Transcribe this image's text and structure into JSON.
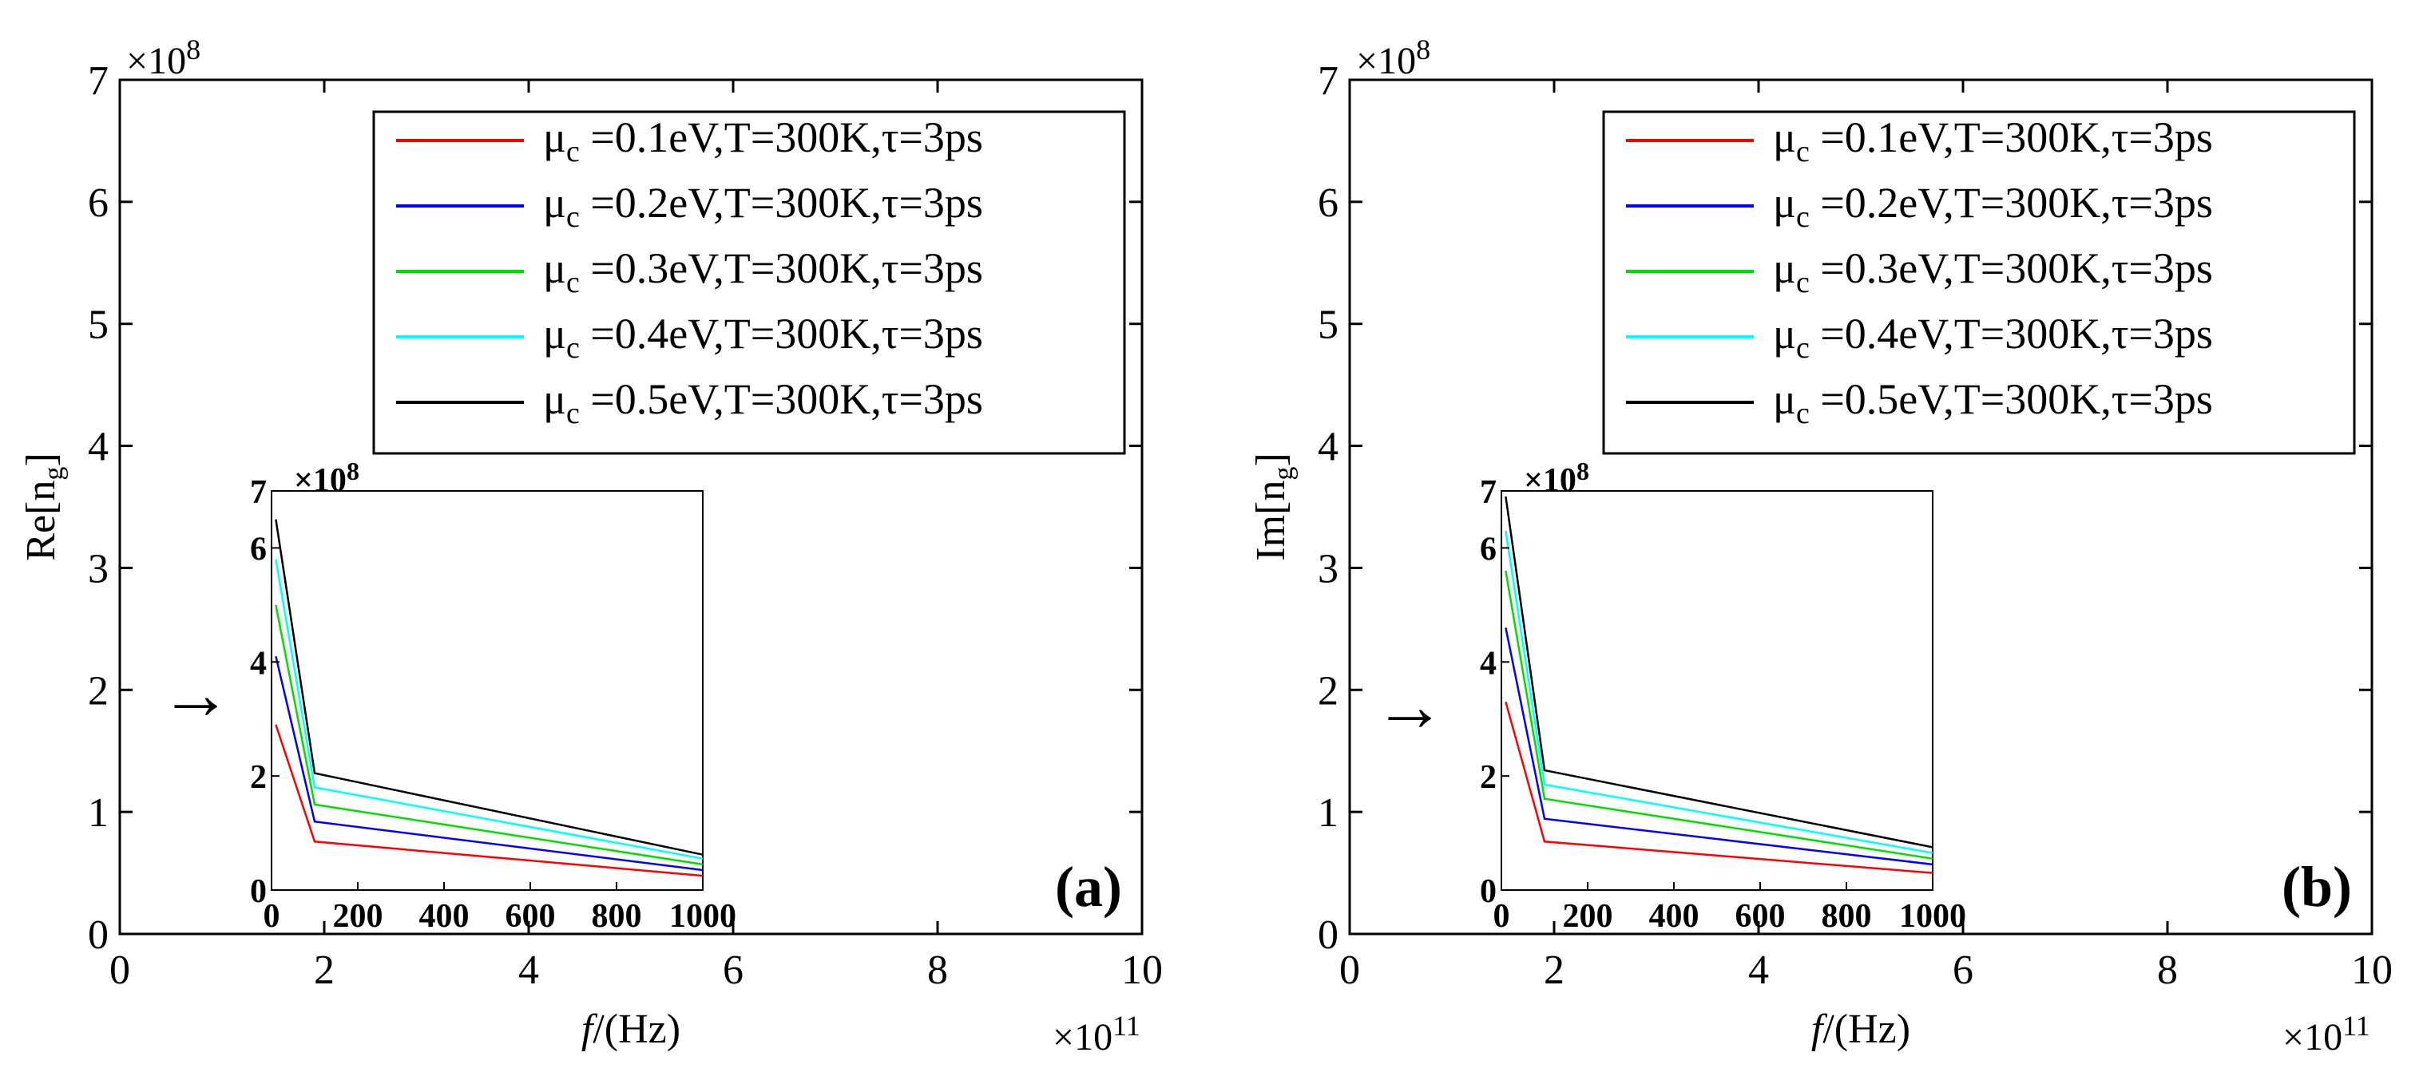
{
  "figure": {
    "panels": [
      {
        "panel_label": "(a)",
        "ylabel": "Re[n",
        "ylabel_sub": "g",
        "ylabel_close": "]",
        "xlabel_italic": "f",
        "xlabel_rest": "/(Hz)",
        "x_exponent_base": "×10",
        "x_exponent_power": "11",
        "y_exponent_base": "×10",
        "y_exponent_power": "8",
        "x_ticks": [
          "0",
          "2",
          "4",
          "6",
          "8",
          "10"
        ],
        "y_ticks": [
          "0",
          "1",
          "2",
          "3",
          "4",
          "5",
          "6",
          "7"
        ],
        "inset": {
          "x_ticks": [
            "0",
            "200",
            "400",
            "600",
            "800",
            "1000"
          ],
          "y_ticks": [
            "0",
            "2",
            "4",
            "6",
            "7"
          ],
          "y_exponent_base": "×10",
          "y_exponent_power": "8"
        },
        "arrow_symbol": "→"
      },
      {
        "panel_label": "(b)",
        "ylabel": "Im[n",
        "ylabel_sub": "g",
        "ylabel_close": "]",
        "xlabel_italic": "f",
        "xlabel_rest": "/(Hz)",
        "x_exponent_base": "×10",
        "x_exponent_power": "11",
        "y_exponent_base": "×10",
        "y_exponent_power": "8",
        "x_ticks": [
          "0",
          "2",
          "4",
          "6",
          "8",
          "10"
        ],
        "y_ticks": [
          "0",
          "1",
          "2",
          "3",
          "4",
          "5",
          "6",
          "7"
        ],
        "inset": {
          "x_ticks": [
            "0",
            "200",
            "400",
            "600",
            "800",
            "1000"
          ],
          "y_ticks": [
            "0",
            "2",
            "4",
            "6",
            "7"
          ],
          "y_exponent_base": "×10",
          "y_exponent_power": "8"
        },
        "arrow_symbol": "→"
      }
    ],
    "legend": [
      {
        "mu_symbol": "μ",
        "mu_sub": "c",
        "text": " =0.1eV,T=300K,τ=3ps",
        "color": "#ff0000"
      },
      {
        "mu_symbol": "μ",
        "mu_sub": "c",
        "text": " =0.2eV,T=300K,τ=3ps",
        "color": "#0000ff"
      },
      {
        "mu_symbol": "μ",
        "mu_sub": "c",
        "text": " =0.3eV,T=300K,τ=3ps",
        "color": "#00dd00"
      },
      {
        "mu_symbol": "μ",
        "mu_sub": "c",
        "text": " =0.4eV,T=300K,τ=3ps",
        "color": "#00ffff"
      },
      {
        "mu_symbol": "μ",
        "mu_sub": "c",
        "text": " =0.5eV,T=300K,τ=3ps",
        "color": "#000000"
      }
    ]
  },
  "chart_data": [
    {
      "type": "line",
      "title": "(a)",
      "xlabel": "f/(Hz)",
      "ylabel": "Re[n_g]",
      "x_scale_factor": "1e11",
      "y_scale_factor": "1e8",
      "xlim": [
        0,
        10
      ],
      "ylim": [
        0,
        7
      ],
      "grid": false,
      "legend_position": "top-right",
      "main_axes_series": "none visible",
      "inset": {
        "type": "line",
        "xlim": [
          0,
          1000
        ],
        "ylim": [
          0,
          7
        ],
        "y_scale_factor": "1e8",
        "x": [
          10,
          100,
          1000
        ],
        "series": [
          {
            "name": "μc =0.1eV,T=300K,τ=3ps",
            "values": [
              2.9,
              0.85,
              0.25
            ]
          },
          {
            "name": "μc =0.2eV,T=300K,τ=3ps",
            "values": [
              4.1,
              1.2,
              0.35
            ]
          },
          {
            "name": "μc =0.3eV,T=300K,τ=3ps",
            "values": [
              5.0,
              1.5,
              0.45
            ]
          },
          {
            "name": "μc =0.4eV,T=300K,τ=3ps",
            "values": [
              5.8,
              1.8,
              0.55
            ]
          },
          {
            "name": "μc =0.5eV,T=300K,τ=3ps",
            "values": [
              6.5,
              2.05,
              0.62
            ]
          }
        ]
      }
    },
    {
      "type": "line",
      "title": "(b)",
      "xlabel": "f/(Hz)",
      "ylabel": "Im[n_g]",
      "x_scale_factor": "1e11",
      "y_scale_factor": "1e8",
      "xlim": [
        0,
        10
      ],
      "ylim": [
        0,
        7
      ],
      "grid": false,
      "legend_position": "top-right",
      "main_axes_series": "none visible",
      "inset": {
        "type": "line",
        "xlim": [
          0,
          1000
        ],
        "ylim": [
          0,
          7
        ],
        "y_scale_factor": "1e8",
        "x": [
          10,
          100,
          1000
        ],
        "series": [
          {
            "name": "μc =0.1eV,T=300K,τ=3ps",
            "values": [
              3.3,
              0.85,
              0.3
            ]
          },
          {
            "name": "μc =0.2eV,T=300K,τ=3ps",
            "values": [
              4.6,
              1.25,
              0.45
            ]
          },
          {
            "name": "μc =0.3eV,T=300K,τ=3ps",
            "values": [
              5.6,
              1.6,
              0.55
            ]
          },
          {
            "name": "μc =0.4eV,T=300K,τ=3ps",
            "values": [
              6.3,
              1.85,
              0.65
            ]
          },
          {
            "name": "μc =0.5eV,T=300K,τ=3ps",
            "values": [
              6.9,
              2.1,
              0.75
            ]
          }
        ]
      }
    }
  ]
}
